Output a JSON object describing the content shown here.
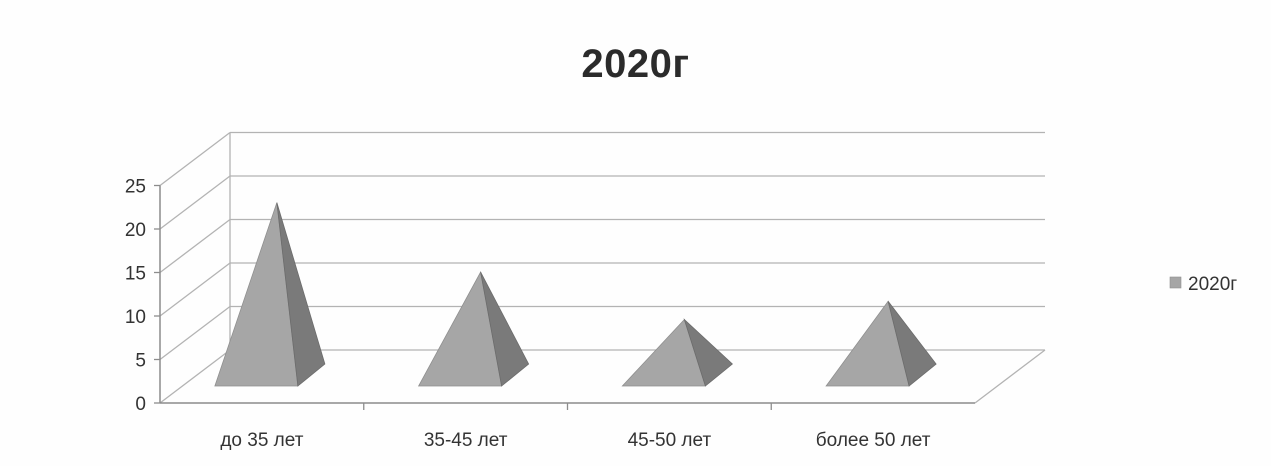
{
  "chart_data": {
    "type": "bar",
    "shape": "pyramid-3d",
    "title": "2020г",
    "categories": [
      "до 35 лет",
      "35-45 лет",
      "45-50 лет",
      "более 50 лет"
    ],
    "series": [
      {
        "name": "2020г",
        "values": [
          24,
          14.5,
          8,
          10.5
        ]
      }
    ],
    "ylim": [
      0,
      25
    ],
    "yticks": [
      0,
      5,
      10,
      15,
      20,
      25
    ],
    "grid": true,
    "legend": "right",
    "colors": {
      "pyramid_light": "#a6a6a6",
      "pyramid_dark": "#7a7a7a",
      "grid": "#b3b3b3",
      "axis": "#8c8c8c"
    }
  }
}
